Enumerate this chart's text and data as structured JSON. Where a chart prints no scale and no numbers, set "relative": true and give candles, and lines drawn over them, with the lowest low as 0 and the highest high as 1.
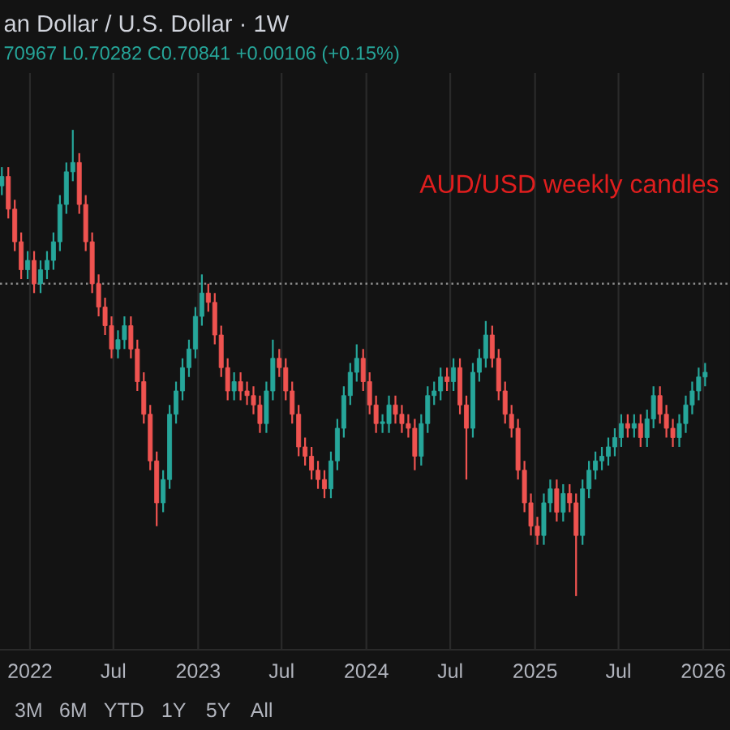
{
  "chart_data": {
    "type": "candlestick",
    "title": "an Dollar / U.S. Dollar · 1W",
    "subtitle": "70967 L0.70282 C0.70841 +0.00106 (+0.15%)",
    "annotations": [
      "AUD/USD weekly candles",
      "3M",
      "6M",
      "YTD",
      "1Y",
      "5Y",
      "All"
    ],
    "relative": true,
    "grid": "x",
    "xlim": [
      "2021-10-28",
      "2026-02-28"
    ],
    "xticks": [
      {
        "value": "2022-01-01",
        "label": "2022"
      },
      {
        "value": "2022-07-01",
        "label": "Jul"
      },
      {
        "value": "2023-01-01",
        "label": "2023"
      },
      {
        "value": "2023-07-01",
        "label": "Jul"
      },
      {
        "value": "2024-01-01",
        "label": "2024"
      },
      {
        "value": "2024-07-01",
        "label": "Jul"
      },
      {
        "value": "2025-01-01",
        "label": "2025"
      },
      {
        "value": "2025-07-01",
        "label": "Jul"
      },
      {
        "value": "2026-01-01",
        "label": "2026"
      }
    ],
    "ref_lines": [
      {
        "axis": "y",
        "value": 0.67,
        "label": null,
        "color": "#8a8a8a",
        "line_style": "dotted"
      }
    ],
    "x": [
      "2021-11-01",
      "2021-11-15",
      "2021-11-29",
      "2021-12-13",
      "2021-12-27",
      "2022-01-10",
      "2022-01-24",
      "2022-02-07",
      "2022-02-21",
      "2022-03-07",
      "2022-03-21",
      "2022-04-04",
      "2022-04-18",
      "2022-05-02",
      "2022-05-16",
      "2022-05-30",
      "2022-06-13",
      "2022-06-27",
      "2022-07-11",
      "2022-07-25",
      "2022-08-08",
      "2022-08-22",
      "2022-09-05",
      "2022-09-19",
      "2022-10-03",
      "2022-10-17",
      "2022-10-31",
      "2022-11-14",
      "2022-11-28",
      "2022-12-12",
      "2022-12-26",
      "2023-01-09",
      "2023-01-23",
      "2023-02-06",
      "2023-02-20",
      "2023-03-06",
      "2023-03-20",
      "2023-04-03",
      "2023-04-17",
      "2023-05-01",
      "2023-05-15",
      "2023-05-29",
      "2023-06-12",
      "2023-06-26",
      "2023-07-10",
      "2023-07-24",
      "2023-08-07",
      "2023-08-21",
      "2023-09-04",
      "2023-09-18",
      "2023-10-02",
      "2023-10-16",
      "2023-10-30",
      "2023-11-13",
      "2023-11-27",
      "2023-12-11",
      "2023-12-25",
      "2024-01-08",
      "2024-01-22",
      "2024-02-05",
      "2024-02-19",
      "2024-03-04",
      "2024-03-18",
      "2024-04-01",
      "2024-04-15",
      "2024-04-29",
      "2024-05-13",
      "2024-05-27",
      "2024-06-10",
      "2024-06-24",
      "2024-07-08",
      "2024-07-22",
      "2024-08-05",
      "2024-08-19",
      "2024-09-02",
      "2024-09-16",
      "2024-09-30",
      "2024-10-14",
      "2024-10-28",
      "2024-11-11",
      "2024-11-25",
      "2024-12-09",
      "2024-12-23",
      "2025-01-06",
      "2025-01-20",
      "2025-02-03",
      "2025-02-17",
      "2025-03-03",
      "2025-03-17",
      "2025-03-31",
      "2025-04-14",
      "2025-04-28",
      "2025-05-12",
      "2025-05-26",
      "2025-06-09",
      "2025-06-23",
      "2025-07-07",
      "2025-07-21",
      "2025-08-04",
      "2025-08-18",
      "2025-09-01",
      "2025-09-15",
      "2025-09-29",
      "2025-10-13",
      "2025-10-27",
      "2025-11-10",
      "2025-11-24",
      "2025-12-08",
      "2025-12-22",
      "2026-01-05"
    ],
    "ohlc": [
      [
        0.88,
        0.92,
        0.86,
        0.9
      ],
      [
        0.9,
        0.92,
        0.81,
        0.83
      ],
      [
        0.83,
        0.85,
        0.74,
        0.76
      ],
      [
        0.76,
        0.78,
        0.68,
        0.7
      ],
      [
        0.7,
        0.74,
        0.68,
        0.72
      ],
      [
        0.72,
        0.74,
        0.65,
        0.67
      ],
      [
        0.67,
        0.72,
        0.65,
        0.7
      ],
      [
        0.7,
        0.74,
        0.68,
        0.72
      ],
      [
        0.72,
        0.78,
        0.7,
        0.76
      ],
      [
        0.76,
        0.86,
        0.74,
        0.84
      ],
      [
        0.84,
        0.93,
        0.82,
        0.91
      ],
      [
        0.91,
        1,
        0.89,
        0.93
      ],
      [
        0.93,
        0.95,
        0.82,
        0.84
      ],
      [
        0.84,
        0.86,
        0.74,
        0.76
      ],
      [
        0.76,
        0.78,
        0.65,
        0.67
      ],
      [
        0.67,
        0.69,
        0.6,
        0.62
      ],
      [
        0.62,
        0.64,
        0.56,
        0.58
      ],
      [
        0.58,
        0.6,
        0.51,
        0.53
      ],
      [
        0.53,
        0.57,
        0.51,
        0.55
      ],
      [
        0.55,
        0.6,
        0.53,
        0.58
      ],
      [
        0.58,
        0.6,
        0.51,
        0.53
      ],
      [
        0.53,
        0.55,
        0.44,
        0.46
      ],
      [
        0.46,
        0.48,
        0.37,
        0.39
      ],
      [
        0.39,
        0.41,
        0.27,
        0.29
      ],
      [
        0.29,
        0.31,
        0.15,
        0.2
      ],
      [
        0.2,
        0.27,
        0.18,
        0.25
      ],
      [
        0.25,
        0.41,
        0.23,
        0.39
      ],
      [
        0.39,
        0.46,
        0.37,
        0.44
      ],
      [
        0.44,
        0.51,
        0.42,
        0.49
      ],
      [
        0.49,
        0.55,
        0.47,
        0.53
      ],
      [
        0.53,
        0.62,
        0.51,
        0.6
      ],
      [
        0.6,
        0.69,
        0.58,
        0.65
      ],
      [
        0.65,
        0.67,
        0.61,
        0.63
      ],
      [
        0.63,
        0.65,
        0.54,
        0.56
      ],
      [
        0.56,
        0.58,
        0.47,
        0.49
      ],
      [
        0.49,
        0.51,
        0.42,
        0.44
      ],
      [
        0.44,
        0.48,
        0.42,
        0.46
      ],
      [
        0.46,
        0.48,
        0.42,
        0.44
      ],
      [
        0.44,
        0.46,
        0.41,
        0.43
      ],
      [
        0.43,
        0.45,
        0.39,
        0.41
      ],
      [
        0.41,
        0.43,
        0.35,
        0.37
      ],
      [
        0.37,
        0.46,
        0.35,
        0.44
      ],
      [
        0.44,
        0.55,
        0.42,
        0.51
      ],
      [
        0.51,
        0.53,
        0.47,
        0.49
      ],
      [
        0.49,
        0.51,
        0.42,
        0.44
      ],
      [
        0.44,
        0.46,
        0.37,
        0.39
      ],
      [
        0.39,
        0.41,
        0.3,
        0.32
      ],
      [
        0.32,
        0.34,
        0.28,
        0.3
      ],
      [
        0.3,
        0.32,
        0.25,
        0.27
      ],
      [
        0.27,
        0.29,
        0.23,
        0.25
      ],
      [
        0.25,
        0.27,
        0.21,
        0.23
      ],
      [
        0.23,
        0.31,
        0.21,
        0.29
      ],
      [
        0.29,
        0.38,
        0.27,
        0.36
      ],
      [
        0.36,
        0.45,
        0.34,
        0.43
      ],
      [
        0.43,
        0.5,
        0.41,
        0.48
      ],
      [
        0.48,
        0.54,
        0.46,
        0.51
      ],
      [
        0.51,
        0.53,
        0.44,
        0.46
      ],
      [
        0.46,
        0.48,
        0.39,
        0.41
      ],
      [
        0.41,
        0.43,
        0.35,
        0.37
      ],
      [
        0.37,
        0.39,
        0.35,
        0.37
      ],
      [
        0.37,
        0.43,
        0.35,
        0.41
      ],
      [
        0.41,
        0.43,
        0.37,
        0.39
      ],
      [
        0.39,
        0.41,
        0.35,
        0.37
      ],
      [
        0.37,
        0.39,
        0.34,
        0.36
      ],
      [
        0.36,
        0.38,
        0.27,
        0.3
      ],
      [
        0.3,
        0.39,
        0.28,
        0.37
      ],
      [
        0.37,
        0.45,
        0.35,
        0.43
      ],
      [
        0.43,
        0.46,
        0.41,
        0.44
      ],
      [
        0.44,
        0.49,
        0.42,
        0.47
      ],
      [
        0.47,
        0.49,
        0.44,
        0.46
      ],
      [
        0.46,
        0.51,
        0.44,
        0.49
      ],
      [
        0.49,
        0.51,
        0.39,
        0.41
      ],
      [
        0.41,
        0.43,
        0.25,
        0.36
      ],
      [
        0.36,
        0.5,
        0.34,
        0.48
      ],
      [
        0.48,
        0.53,
        0.46,
        0.51
      ],
      [
        0.51,
        0.59,
        0.49,
        0.56
      ],
      [
        0.56,
        0.58,
        0.49,
        0.51
      ],
      [
        0.51,
        0.53,
        0.42,
        0.44
      ],
      [
        0.44,
        0.46,
        0.37,
        0.39
      ],
      [
        0.39,
        0.41,
        0.34,
        0.36
      ],
      [
        0.36,
        0.38,
        0.25,
        0.27
      ],
      [
        0.27,
        0.29,
        0.18,
        0.2
      ],
      [
        0.2,
        0.22,
        0.13,
        0.15
      ],
      [
        0.15,
        0.17,
        0.11,
        0.13
      ],
      [
        0.13,
        0.22,
        0.11,
        0.2
      ],
      [
        0.2,
        0.25,
        0.18,
        0.23
      ],
      [
        0.23,
        0.25,
        0.16,
        0.18
      ],
      [
        0.18,
        0.24,
        0.16,
        0.22
      ],
      [
        0.22,
        0.24,
        0.18,
        0.2
      ],
      [
        0.2,
        0.22,
        0,
        0.13
      ],
      [
        0.13,
        0.25,
        0.11,
        0.23
      ],
      [
        0.23,
        0.29,
        0.21,
        0.27
      ],
      [
        0.27,
        0.31,
        0.25,
        0.29
      ],
      [
        0.29,
        0.32,
        0.27,
        0.3
      ],
      [
        0.3,
        0.34,
        0.28,
        0.32
      ],
      [
        0.32,
        0.36,
        0.3,
        0.34
      ],
      [
        0.34,
        0.39,
        0.32,
        0.37
      ],
      [
        0.37,
        0.39,
        0.34,
        0.36
      ],
      [
        0.36,
        0.39,
        0.34,
        0.37
      ],
      [
        0.37,
        0.39,
        0.32,
        0.34
      ],
      [
        0.34,
        0.4,
        0.32,
        0.38
      ],
      [
        0.38,
        0.45,
        0.36,
        0.43
      ],
      [
        0.43,
        0.45,
        0.37,
        0.39
      ],
      [
        0.39,
        0.41,
        0.34,
        0.36
      ],
      [
        0.36,
        0.38,
        0.32,
        0.34
      ],
      [
        0.34,
        0.39,
        0.32,
        0.37
      ],
      [
        0.37,
        0.43,
        0.35,
        0.41
      ],
      [
        0.41,
        0.46,
        0.39,
        0.44
      ],
      [
        0.44,
        0.49,
        0.42,
        0.47
      ],
      [
        0.47,
        0.5,
        0.45,
        0.48
      ]
    ]
  }
}
